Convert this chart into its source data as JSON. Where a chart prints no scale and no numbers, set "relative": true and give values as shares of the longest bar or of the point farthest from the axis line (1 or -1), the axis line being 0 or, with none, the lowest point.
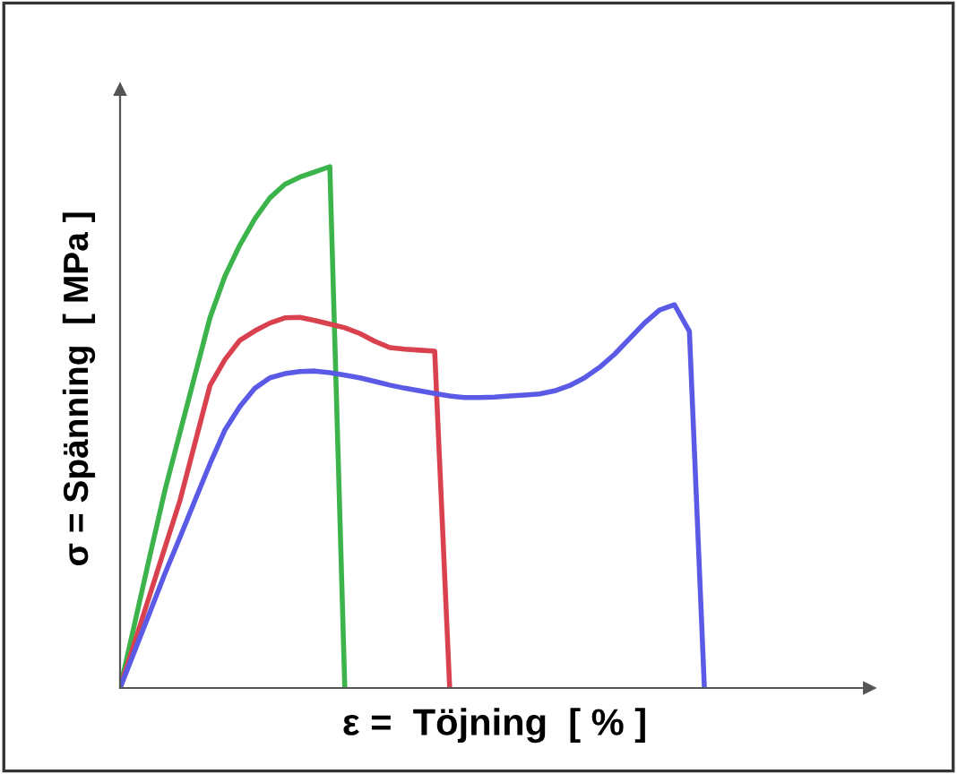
{
  "chart_data": {
    "type": "line",
    "relative": true,
    "xlabel": "ε =  Töjning  [ % ]",
    "ylabel": "σ = Spänning  [ MPa ]",
    "legend": false,
    "marker": "none",
    "line_style": "solid",
    "tick_labels": false,
    "categories": [
      null,
      null,
      null,
      null,
      null,
      null,
      null,
      null,
      null,
      null,
      null,
      null,
      null,
      null,
      null,
      null,
      null,
      null,
      null,
      null,
      null,
      null,
      null,
      null,
      null,
      null,
      null,
      null,
      null,
      null,
      null,
      null,
      null,
      null,
      null,
      null,
      null,
      null,
      null,
      null,
      null,
      null,
      null,
      null,
      null,
      null,
      null,
      null,
      null,
      null,
      null
    ],
    "series": [
      {
        "color": "#3cb44b",
        "values": [
          0,
          0.127,
          0.255,
          0.38,
          0.49,
          0.6,
          0.71,
          0.79,
          0.85,
          0.9,
          0.94,
          0.966,
          0.98,
          0.99,
          1,
          0,
          null,
          null,
          null,
          null,
          null,
          null,
          null,
          null,
          null,
          null,
          null,
          null,
          null,
          null,
          null,
          null,
          null,
          null,
          null,
          null,
          null,
          null,
          null,
          null,
          null,
          null,
          null,
          null,
          null,
          null,
          null,
          null,
          null,
          null,
          null
        ]
      },
      {
        "color": "#d9414f",
        "values": [
          0,
          0.09,
          0.18,
          0.27,
          0.36,
          0.47,
          0.58,
          0.63,
          0.667,
          0.685,
          0.7,
          0.71,
          0.711,
          0.705,
          0.698,
          0.691,
          0.68,
          0.665,
          0.653,
          0.65,
          0.648,
          0.646,
          0,
          null,
          null,
          null,
          null,
          null,
          null,
          null,
          null,
          null,
          null,
          null,
          null,
          null,
          null,
          null,
          null,
          null,
          null,
          null,
          null,
          null,
          null,
          null,
          null,
          null,
          null,
          null,
          null
        ]
      },
      {
        "color": "#5a5ae6",
        "values": [
          0,
          0.073,
          0.146,
          0.22,
          0.289,
          0.36,
          0.43,
          0.495,
          0.54,
          0.575,
          0.595,
          0.603,
          0.607,
          0.608,
          0.605,
          0.6,
          0.595,
          0.588,
          0.581,
          0.575,
          0.57,
          0.565,
          0.56,
          0.557,
          0.557,
          0.558,
          0.56,
          0.562,
          0.564,
          0.57,
          0.58,
          0.595,
          0.615,
          0.64,
          0.67,
          0.7,
          0.725,
          0.735,
          0.684,
          0,
          null,
          null,
          null,
          null,
          null,
          null,
          null,
          null,
          null,
          null,
          null
        ]
      }
    ]
  }
}
